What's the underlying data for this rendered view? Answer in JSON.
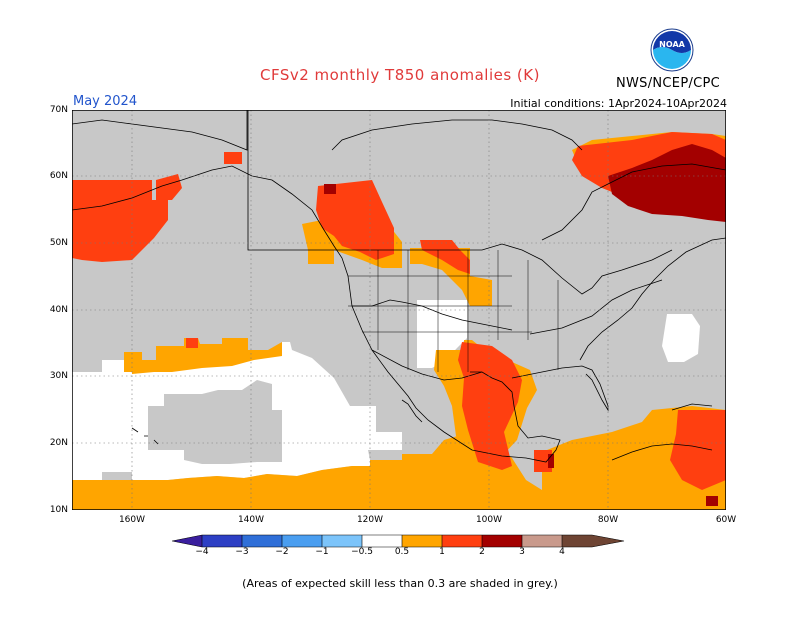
{
  "header": {
    "title": "CFSv2 monthly T850 anomalies (K)",
    "month": "May 2024",
    "initial_conditions": "Initial conditions: 1Apr2024-10Apr2024",
    "agency": "NWS/NCEP/CPC",
    "logo_text": "NOAA"
  },
  "axes": {
    "lat_labels": [
      "70N",
      "60N",
      "50N",
      "40N",
      "30N",
      "20N",
      "10N"
    ],
    "lon_labels": [
      "160W",
      "140W",
      "120W",
      "100W",
      "80W",
      "60W"
    ]
  },
  "colorbar": {
    "labels": [
      "−4",
      "−3",
      "−2",
      "−1",
      "−0.5",
      "0.5",
      "1",
      "2",
      "3",
      "4"
    ],
    "colors": [
      "#3a1e9e",
      "#2d3fc4",
      "#2f6fd8",
      "#4a9ef0",
      "#7cc4fa",
      "#ffffff",
      "#ffa500",
      "#ff3f10",
      "#a30000",
      "#c99a8c",
      "#6e4433"
    ]
  },
  "colors": {
    "grey_low_skill": "#c8c8c8",
    "orange_0_5_1": "#ffa500",
    "red_1_2": "#ff3f10",
    "darkred_2_3": "#a30000"
  },
  "footnote": "(Areas of expected skill less than 0.3 are shaded in grey.)"
}
